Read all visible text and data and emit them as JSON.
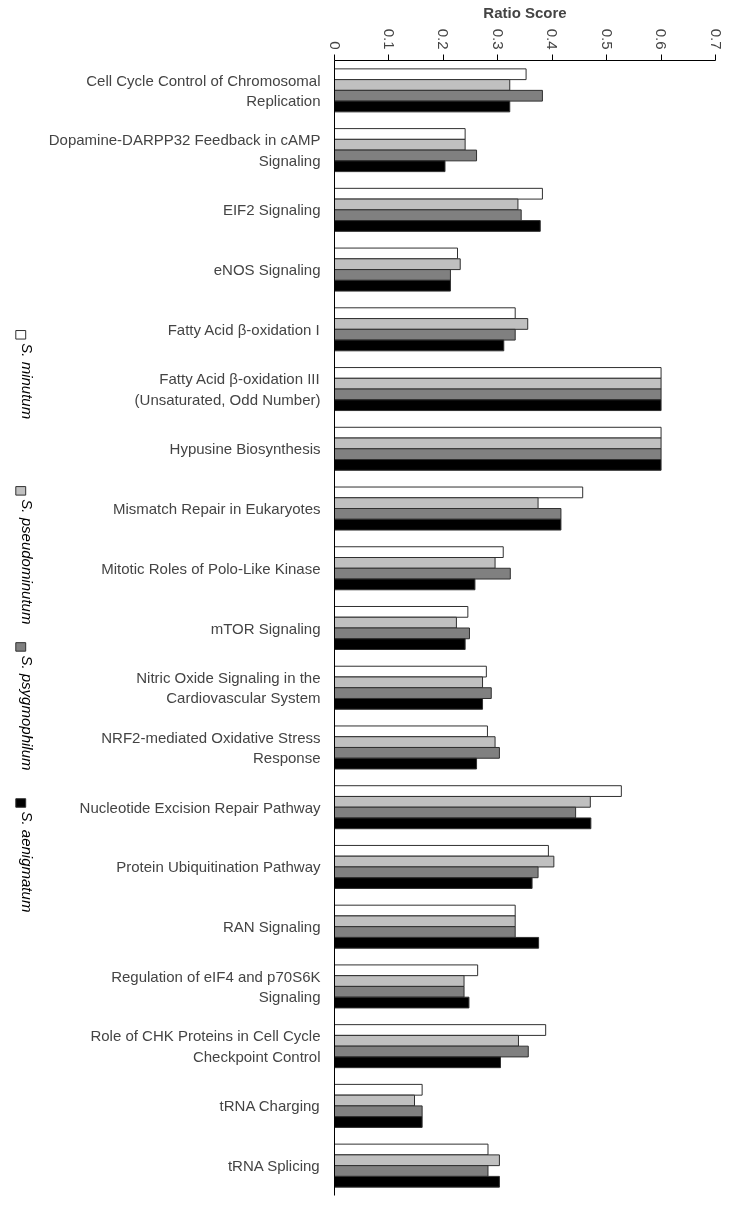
{
  "chart_data": {
    "type": "bar",
    "orientation": "horizontal",
    "xlabel": "Ratio Score",
    "categories": [
      "Cell Cycle Control of Chromosomal Replication",
      "Dopamine-DARPP32 Feedback in cAMP Signaling",
      "EIF2 Signaling",
      "eNOS Signaling",
      "Fatty Acid β-oxidation I",
      "Fatty Acid β-oxidation III (Unsaturated, Odd Number)",
      "Hypusine Biosynthesis",
      "Mismatch Repair in Eukaryotes",
      "Mitotic Roles of Polo-Like Kinase",
      "mTOR Signaling",
      "Nitric Oxide Signaling in the Cardiovascular System",
      "NRF2-mediated Oxidative Stress Response",
      "Nucleotide Excision Repair Pathway",
      "Protein Ubiquitination Pathway",
      "RAN Signaling",
      "Regulation of eIF4 and p70S6K Signaling",
      "Role of CHK Proteins in Cell Cycle Checkpoint Control",
      "tRNA Charging",
      "tRNA Splicing"
    ],
    "series": [
      {
        "name": "S. minutum",
        "color": "#ffffff",
        "values": [
          0.352,
          0.24,
          0.382,
          0.226,
          0.332,
          0.6,
          0.6,
          0.456,
          0.31,
          0.245,
          0.279,
          0.281,
          0.527,
          0.393,
          0.332,
          0.263,
          0.388,
          0.161,
          0.282
        ]
      },
      {
        "name": "S. pseudominutum",
        "color": "#c0c0c0",
        "values": [
          0.322,
          0.24,
          0.337,
          0.231,
          0.355,
          0.6,
          0.6,
          0.374,
          0.295,
          0.224,
          0.272,
          0.295,
          0.47,
          0.403,
          0.332,
          0.238,
          0.338,
          0.147,
          0.303
        ]
      },
      {
        "name": "S. psygmophilum",
        "color": "#808080",
        "values": [
          0.382,
          0.261,
          0.343,
          0.213,
          0.332,
          0.6,
          0.6,
          0.416,
          0.323,
          0.248,
          0.288,
          0.303,
          0.443,
          0.374,
          0.332,
          0.238,
          0.356,
          0.161,
          0.282
        ]
      },
      {
        "name": "S. aenigmatum",
        "color": "#000000",
        "values": [
          0.322,
          0.203,
          0.378,
          0.213,
          0.311,
          0.6,
          0.6,
          0.416,
          0.258,
          0.24,
          0.272,
          0.261,
          0.471,
          0.363,
          0.375,
          0.247,
          0.305,
          0.161,
          0.303
        ]
      }
    ],
    "xlim": [
      0,
      0.7
    ],
    "xticks": [
      0,
      0.1,
      0.2,
      0.3,
      0.4,
      0.5,
      0.6,
      0.7
    ],
    "grid": false,
    "legend": "left"
  }
}
